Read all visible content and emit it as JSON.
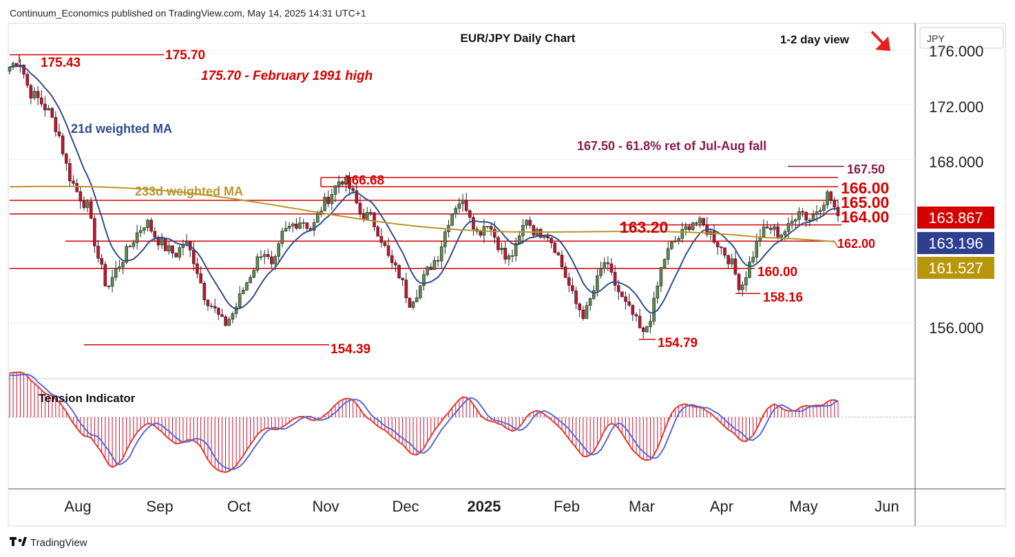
{
  "header": {
    "publisher": "Continuum_Economics published on TradingView.com, May 14, 2025 14:31 UTC+1",
    "title": "EUR/JPY Daily Chart",
    "view": "1-2 day view",
    "currency": "JPY"
  },
  "footer": {
    "brand": "TradingView"
  },
  "colors": {
    "up": "#5b8a4e",
    "down": "#c8102e",
    "ma21": "#2f4b8c",
    "ma233": "#b8962a",
    "level": "#d40000",
    "fib": "#8b1a4a",
    "text": "#111111"
  },
  "chart_data": {
    "type": "candlestick",
    "title": "EUR/JPY Daily Chart",
    "x_ticks": [
      "Aug",
      "Sep",
      "Oct",
      "Nov",
      "Dec",
      "2025",
      "Feb",
      "Mar",
      "Apr",
      "May",
      "Jun"
    ],
    "y_ticks": [
      "176.000",
      "172.000",
      "168.000",
      "156.000"
    ],
    "y_range": [
      152.0,
      178.0
    ],
    "ohlc_close_path": [
      174.8,
      175.4,
      173.0,
      172.4,
      171.5,
      170.0,
      167.0,
      165.5,
      164.5,
      161.0,
      158.5,
      160.0,
      161.2,
      162.5,
      163.5,
      162.3,
      161.5,
      161.0,
      162.0,
      160.5,
      158.0,
      157.0,
      155.8,
      156.8,
      158.5,
      160.0,
      161.5,
      159.8,
      162.5,
      163.2,
      163.6,
      162.8,
      164.5,
      165.5,
      166.68,
      165.8,
      164.0,
      163.8,
      162.5,
      160.5,
      159.5,
      157.5,
      158.5,
      160.0,
      161.0,
      163.5,
      165.0,
      164.5,
      162.5,
      163.5,
      162.0,
      160.5,
      161.5,
      163.8,
      162.5,
      162.8,
      161.5,
      159.5,
      157.5,
      156.5,
      158.5,
      160.5,
      159.0,
      157.5,
      156.5,
      155.0,
      157.0,
      160.5,
      161.8,
      162.5,
      163.5,
      163.2,
      162.5,
      161.5,
      160.5,
      158.5,
      160.5,
      162.5,
      163.0,
      162.5,
      163.0,
      164.5,
      163.5,
      164.5,
      165.5,
      163.867
    ],
    "annotations": {
      "high": "175.70",
      "high_note": "175.70 - February 1991 high",
      "prior_high": "175.43",
      "fib": "167.50",
      "fib_note": "167.50 - 61.8% ret of Jul-Aug fall",
      "r1": "166.68",
      "r2": "166.00",
      "r3": "165.00",
      "s1": "164.00",
      "s2": "163.20",
      "s3": "162.00",
      "s4": "160.00",
      "s5": "158.16",
      "low1": "154.39",
      "low2": "154.79"
    },
    "ma21_label": "21d weighted MA",
    "ma233_label": "233d weighted MA",
    "badges": {
      "last": "163.867",
      "ma21": "163.196",
      "ma233": "161.527"
    },
    "indicator": {
      "name": "Tension Indicator"
    }
  }
}
